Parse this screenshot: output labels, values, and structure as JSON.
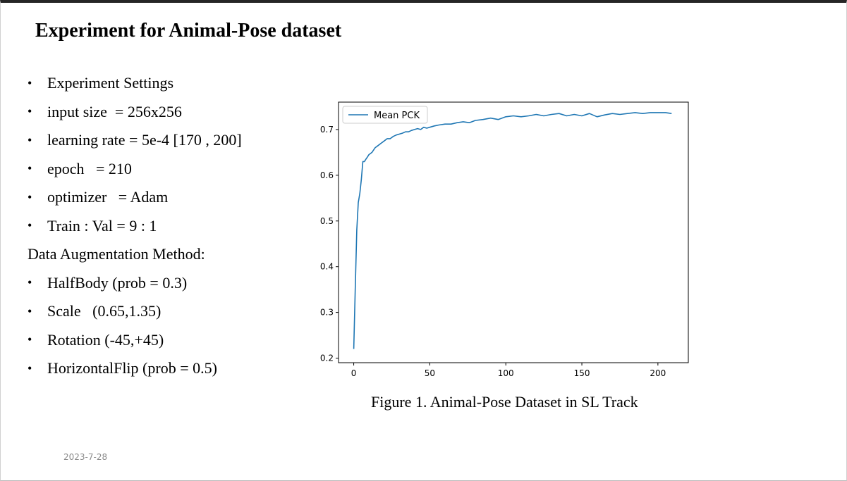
{
  "slide": {
    "title": "Experiment for Animal-Pose dataset",
    "date": "2023-7-28"
  },
  "bullets": [
    {
      "bullet": "•",
      "text": "Experiment Settings"
    },
    {
      "bullet": "•",
      "text": "input size  = 256x256"
    },
    {
      "bullet": "•",
      "text": "learning rate = 5e-4 [170 , 200]"
    },
    {
      "bullet": "•",
      "text": "epoch   = 210"
    },
    {
      "bullet": "•",
      "text": "optimizer   = Adam"
    },
    {
      "bullet": "•",
      "text": "Train : Val = 9 : 1"
    },
    {
      "bullet": "",
      "text": "Data Augmentation Method:"
    },
    {
      "bullet": "•",
      "text": "HalfBody (prob = 0.3)"
    },
    {
      "bullet": "•",
      "text": "Scale   (0.65,1.35)"
    },
    {
      "bullet": "•",
      "text": "Rotation (-45,+45)"
    },
    {
      "bullet": "•",
      "text": "HorizontalFlip (prob = 0.5)"
    }
  ],
  "figure": {
    "caption": "Figure 1. Animal-Pose Dataset in SL Track"
  },
  "chart_data": {
    "type": "line",
    "title": "",
    "xlabel": "",
    "ylabel": "",
    "xlim": [
      -10,
      220
    ],
    "ylim": [
      0.19,
      0.76
    ],
    "xticks": [
      0,
      50,
      100,
      150,
      200
    ],
    "yticks": [
      0.2,
      0.3,
      0.4,
      0.5,
      0.6,
      0.7
    ],
    "legend": {
      "position": "top-left"
    },
    "color": "#1f77b4",
    "series": [
      {
        "name": "Mean PCK",
        "x": [
          0,
          1,
          2,
          3,
          4,
          5,
          6,
          7,
          8,
          9,
          10,
          12,
          14,
          16,
          18,
          20,
          22,
          24,
          26,
          28,
          30,
          32,
          34,
          36,
          38,
          40,
          42,
          44,
          46,
          48,
          50,
          53,
          56,
          60,
          64,
          68,
          72,
          76,
          80,
          85,
          90,
          95,
          100,
          105,
          110,
          115,
          120,
          125,
          130,
          135,
          140,
          145,
          150,
          155,
          160,
          165,
          170,
          175,
          180,
          185,
          190,
          195,
          200,
          205,
          209
        ],
        "y": [
          0.22,
          0.35,
          0.48,
          0.54,
          0.56,
          0.59,
          0.63,
          0.63,
          0.635,
          0.64,
          0.645,
          0.65,
          0.66,
          0.665,
          0.67,
          0.675,
          0.68,
          0.68,
          0.685,
          0.688,
          0.69,
          0.692,
          0.695,
          0.695,
          0.698,
          0.7,
          0.702,
          0.7,
          0.705,
          0.703,
          0.705,
          0.708,
          0.71,
          0.712,
          0.712,
          0.715,
          0.717,
          0.715,
          0.72,
          0.722,
          0.725,
          0.722,
          0.728,
          0.73,
          0.728,
          0.73,
          0.733,
          0.73,
          0.733,
          0.735,
          0.73,
          0.733,
          0.73,
          0.735,
          0.728,
          0.732,
          0.735,
          0.733,
          0.735,
          0.737,
          0.735,
          0.737,
          0.737,
          0.737,
          0.735
        ]
      }
    ]
  }
}
